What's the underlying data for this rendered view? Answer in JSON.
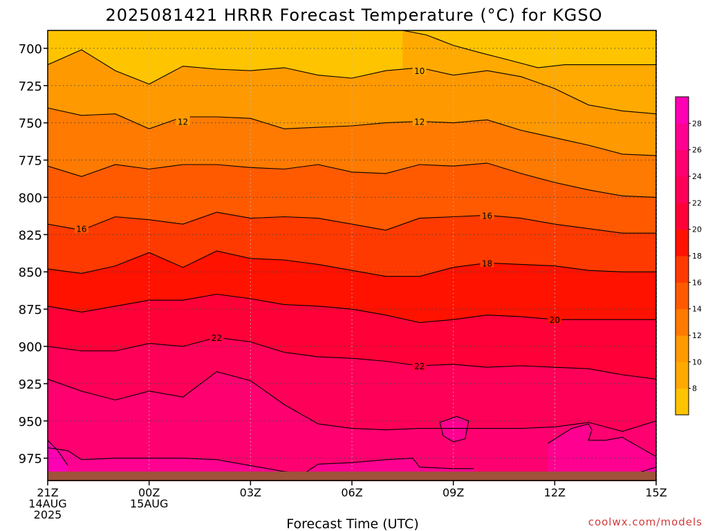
{
  "title": "2025081421 HRRR Forecast Temperature (°C) for KGSO",
  "xlabel": "Forecast Time (UTC)",
  "credit": "coolwx.com/models",
  "chart_data": {
    "type": "contour",
    "title": "2025081421 HRRR Forecast Temperature (°C) for KGSO",
    "xlabel": "Forecast Time (UTC)",
    "ylabel": "",
    "x_ticks": [
      {
        "hour": 0,
        "lines": [
          "21Z",
          "14AUG",
          "2025"
        ]
      },
      {
        "hour": 3,
        "lines": [
          "00Z",
          "15AUG"
        ]
      },
      {
        "hour": 6,
        "lines": [
          "03Z"
        ]
      },
      {
        "hour": 9,
        "lines": [
          "06Z"
        ]
      },
      {
        "hour": 12,
        "lines": [
          "09Z"
        ]
      },
      {
        "hour": 15,
        "lines": [
          "12Z"
        ]
      },
      {
        "hour": 18,
        "lines": [
          "15Z"
        ]
      }
    ],
    "xlim": [
      0,
      18
    ],
    "ylim": [
      990,
      688
    ],
    "y_ticks": [
      700,
      725,
      750,
      775,
      800,
      825,
      850,
      875,
      900,
      925,
      950,
      975
    ],
    "grid": true,
    "colorbar": {
      "ticks": [
        8,
        10,
        12,
        14,
        16,
        18,
        20,
        22,
        24,
        26,
        28
      ],
      "levels": [
        6,
        8,
        10,
        12,
        14,
        16,
        18,
        20,
        22,
        24,
        26,
        28,
        30
      ],
      "colors": [
        "#ffc400",
        "#ffaa00",
        "#ff9900",
        "#ff7a00",
        "#ff5a00",
        "#ff3a00",
        "#ff1200",
        "#ff0038",
        "#ff0058",
        "#ff0070",
        "#ff0090",
        "#ff00b4"
      ]
    },
    "contour_labels": [
      {
        "value": "10",
        "hour": 11,
        "p": 715
      },
      {
        "value": "12",
        "hour": 4,
        "p": 749
      },
      {
        "value": "12",
        "hour": 11,
        "p": 749
      },
      {
        "value": "16",
        "hour": 1,
        "p": 821
      },
      {
        "value": "16",
        "hour": 13,
        "p": 812
      },
      {
        "value": "18",
        "hour": 13,
        "p": 844
      },
      {
        "value": "20",
        "hour": 15,
        "p": 882
      },
      {
        "value": "22",
        "hour": 5,
        "p": 894
      },
      {
        "value": "22",
        "hour": 11,
        "p": 913
      }
    ],
    "isotherms": [
      {
        "value": 8,
        "points": [
          [
            10.5,
            688
          ],
          [
            11.2,
            691
          ],
          [
            12,
            698
          ],
          [
            12.8,
            703
          ],
          [
            13.5,
            707
          ],
          [
            14.5,
            713
          ],
          [
            15.3,
            711
          ],
          [
            18,
            711
          ]
        ]
      },
      {
        "value": 10,
        "points": [
          [
            0,
            711
          ],
          [
            1,
            701
          ],
          [
            2,
            715
          ],
          [
            3,
            724
          ],
          [
            4,
            712
          ],
          [
            5,
            714
          ],
          [
            6,
            715
          ],
          [
            7,
            713
          ],
          [
            8,
            718
          ],
          [
            9,
            720
          ],
          [
            10,
            715
          ],
          [
            11,
            713
          ],
          [
            12,
            718
          ],
          [
            13,
            715
          ],
          [
            14,
            719
          ],
          [
            15,
            727
          ],
          [
            16,
            738
          ],
          [
            17,
            742
          ],
          [
            18,
            744
          ]
        ]
      },
      {
        "value": 12,
        "points": [
          [
            0,
            740
          ],
          [
            1,
            745
          ],
          [
            2,
            744
          ],
          [
            3,
            754
          ],
          [
            4,
            746
          ],
          [
            5,
            746
          ],
          [
            6,
            747
          ],
          [
            7,
            754
          ],
          [
            8,
            753
          ],
          [
            9,
            752
          ],
          [
            10,
            750
          ],
          [
            11,
            749
          ],
          [
            12,
            750
          ],
          [
            13,
            748
          ],
          [
            14,
            755
          ],
          [
            15,
            760
          ],
          [
            16,
            765
          ],
          [
            17,
            771
          ],
          [
            18,
            772
          ]
        ]
      },
      {
        "value": 14,
        "points": [
          [
            0,
            779
          ],
          [
            1,
            786
          ],
          [
            2,
            778
          ],
          [
            3,
            781
          ],
          [
            4,
            778
          ],
          [
            5,
            778
          ],
          [
            6,
            780
          ],
          [
            7,
            781
          ],
          [
            8,
            778
          ],
          [
            9,
            783
          ],
          [
            10,
            784
          ],
          [
            11,
            778
          ],
          [
            12,
            779
          ],
          [
            13,
            777
          ],
          [
            14,
            784
          ],
          [
            15,
            790
          ],
          [
            16,
            795
          ],
          [
            17,
            799
          ],
          [
            18,
            800
          ]
        ]
      },
      {
        "value": 16,
        "points": [
          [
            0,
            818
          ],
          [
            1,
            822
          ],
          [
            2,
            813
          ],
          [
            3,
            815
          ],
          [
            4,
            818
          ],
          [
            5,
            810
          ],
          [
            6,
            814
          ],
          [
            7,
            813
          ],
          [
            8,
            814
          ],
          [
            9,
            818
          ],
          [
            10,
            822
          ],
          [
            11,
            814
          ],
          [
            12,
            813
          ],
          [
            13,
            812
          ],
          [
            14,
            814
          ],
          [
            15,
            818
          ],
          [
            16,
            821
          ],
          [
            17,
            824
          ],
          [
            18,
            824
          ]
        ]
      },
      {
        "value": 18,
        "points": [
          [
            0,
            848
          ],
          [
            1,
            851
          ],
          [
            2,
            846
          ],
          [
            3,
            837
          ],
          [
            4,
            847
          ],
          [
            5,
            836
          ],
          [
            6,
            841
          ],
          [
            7,
            842
          ],
          [
            8,
            845
          ],
          [
            9,
            849
          ],
          [
            10,
            853
          ],
          [
            11,
            853
          ],
          [
            12,
            847
          ],
          [
            13,
            844
          ],
          [
            14,
            845
          ],
          [
            15,
            846
          ],
          [
            16,
            849
          ],
          [
            17,
            850
          ],
          [
            18,
            850
          ]
        ]
      },
      {
        "value": 20,
        "points": [
          [
            0,
            873
          ],
          [
            1,
            877
          ],
          [
            2,
            873
          ],
          [
            3,
            869
          ],
          [
            4,
            869
          ],
          [
            5,
            865
          ],
          [
            6,
            868
          ],
          [
            7,
            872
          ],
          [
            8,
            873
          ],
          [
            9,
            875
          ],
          [
            10,
            879
          ],
          [
            11,
            884
          ],
          [
            12,
            882
          ],
          [
            13,
            879
          ],
          [
            14,
            880
          ],
          [
            15,
            882
          ],
          [
            16,
            882
          ],
          [
            17,
            882
          ],
          [
            18,
            882
          ]
        ]
      },
      {
        "value": 22,
        "points": [
          [
            0,
            900
          ],
          [
            1,
            903
          ],
          [
            2,
            903
          ],
          [
            3,
            898
          ],
          [
            4,
            900
          ],
          [
            5,
            894
          ],
          [
            6,
            897
          ],
          [
            7,
            904
          ],
          [
            8,
            907
          ],
          [
            9,
            908
          ],
          [
            10,
            910
          ],
          [
            11,
            913
          ],
          [
            12,
            912
          ],
          [
            13,
            914
          ],
          [
            14,
            913
          ],
          [
            15,
            914
          ],
          [
            16,
            915
          ],
          [
            17,
            919
          ],
          [
            18,
            922
          ]
        ]
      },
      {
        "value": 24,
        "points": [
          [
            0,
            922
          ],
          [
            1,
            930
          ],
          [
            2,
            936
          ],
          [
            3,
            930
          ],
          [
            4,
            934
          ],
          [
            5,
            917
          ],
          [
            6,
            923
          ],
          [
            7,
            939
          ],
          [
            8,
            952
          ],
          [
            9,
            955
          ],
          [
            10,
            956
          ],
          [
            11,
            955
          ],
          [
            12,
            955
          ],
          [
            12.6,
            955
          ],
          [
            13,
            955
          ],
          [
            14,
            955
          ],
          [
            15,
            954
          ],
          [
            16,
            951
          ],
          [
            17,
            957
          ],
          [
            18,
            950
          ]
        ]
      },
      {
        "value": 26,
        "points": [
          [
            0,
            968
          ],
          [
            0.6,
            970
          ],
          [
            1,
            976
          ],
          [
            2,
            975
          ],
          [
            3,
            975
          ],
          [
            4,
            975
          ],
          [
            5,
            976
          ],
          [
            6,
            980
          ],
          [
            7,
            984
          ],
          [
            7.6,
            985
          ],
          [
            8,
            979
          ],
          [
            9,
            978
          ],
          [
            10,
            976
          ],
          [
            10.8,
            975
          ],
          [
            11,
            981
          ],
          [
            12,
            982
          ],
          [
            12.6,
            982
          ]
        ]
      },
      {
        "value": 26,
        "closed": true,
        "points": [
          [
            11.6,
            951
          ],
          [
            12.1,
            947
          ],
          [
            12.45,
            950
          ],
          [
            12.35,
            962
          ],
          [
            12,
            964
          ],
          [
            11.7,
            960
          ]
        ]
      },
      {
        "value": 26,
        "points": [
          [
            14.8,
            965
          ],
          [
            15.5,
            955
          ],
          [
            16,
            952
          ],
          [
            16.1,
            956
          ],
          [
            16,
            963
          ],
          [
            16.5,
            963
          ],
          [
            17,
            961
          ],
          [
            18,
            974
          ]
        ]
      },
      {
        "value": 28,
        "points": [
          [
            0,
            963
          ],
          [
            0.3,
            970
          ],
          [
            0.6,
            980
          ]
        ]
      },
      {
        "value": 28,
        "points": [
          [
            17,
            988
          ],
          [
            18,
            981
          ]
        ]
      }
    ],
    "terrain_top_p": 984
  }
}
